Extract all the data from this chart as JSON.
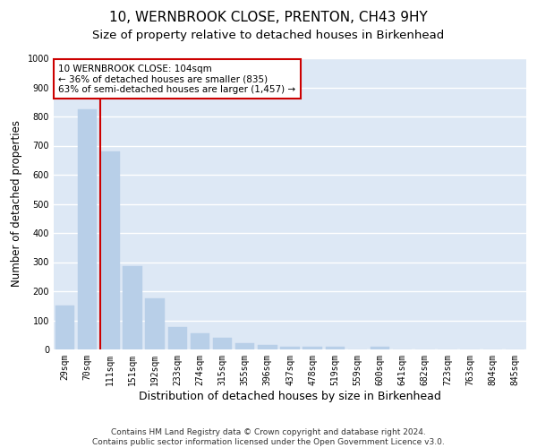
{
  "title": "10, WERNBROOK CLOSE, PRENTON, CH43 9HY",
  "subtitle": "Size of property relative to detached houses in Birkenhead",
  "xlabel": "Distribution of detached houses by size in Birkenhead",
  "ylabel": "Number of detached properties",
  "bar_color": "#b8cfe8",
  "bar_edge_color": "#b8cfe8",
  "background_color": "#dde8f5",
  "grid_color": "#ffffff",
  "categories": [
    "29sqm",
    "70sqm",
    "111sqm",
    "151sqm",
    "192sqm",
    "233sqm",
    "274sqm",
    "315sqm",
    "355sqm",
    "396sqm",
    "437sqm",
    "478sqm",
    "519sqm",
    "559sqm",
    "600sqm",
    "641sqm",
    "682sqm",
    "723sqm",
    "763sqm",
    "804sqm",
    "845sqm"
  ],
  "values": [
    150,
    825,
    680,
    285,
    175,
    78,
    55,
    40,
    22,
    15,
    8,
    8,
    8,
    0,
    8,
    0,
    0,
    0,
    0,
    0,
    0
  ],
  "ylim": [
    0,
    1000
  ],
  "yticks": [
    0,
    100,
    200,
    300,
    400,
    500,
    600,
    700,
    800,
    900,
    1000
  ],
  "vline_index": 2,
  "vline_color": "#cc0000",
  "annotation_text": "10 WERNBROOK CLOSE: 104sqm\n← 36% of detached houses are smaller (835)\n63% of semi-detached houses are larger (1,457) →",
  "annotation_box_color": "#ffffff",
  "annotation_box_edge": "#cc0000",
  "footer_line1": "Contains HM Land Registry data © Crown copyright and database right 2024.",
  "footer_line2": "Contains public sector information licensed under the Open Government Licence v3.0.",
  "title_fontsize": 11,
  "subtitle_fontsize": 9.5,
  "xlabel_fontsize": 9,
  "ylabel_fontsize": 8.5,
  "tick_fontsize": 7,
  "footer_fontsize": 6.5
}
